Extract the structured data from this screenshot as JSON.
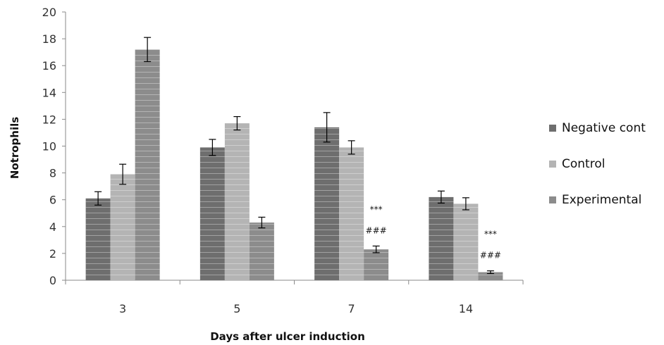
{
  "chart_data": {
    "type": "bar",
    "title": "",
    "xlabel": "Days after ulcer induction",
    "ylabel": "Notrophils",
    "categories": [
      "3",
      "5",
      "7",
      "14"
    ],
    "ylim": [
      0,
      20
    ],
    "yticks": [
      0,
      2,
      4,
      6,
      8,
      10,
      12,
      14,
      16,
      18,
      20
    ],
    "grid": false,
    "legend_position": "right",
    "series": [
      {
        "name": "Negative cont",
        "color": "#6e6e6e",
        "values": [
          6.1,
          9.9,
          11.4,
          6.2
        ],
        "errors": [
          0.5,
          0.6,
          1.1,
          0.45
        ]
      },
      {
        "name": "Control",
        "color": "#b4b4b4",
        "values": [
          7.9,
          11.7,
          9.9,
          5.7
        ],
        "errors": [
          0.75,
          0.5,
          0.5,
          0.45
        ]
      },
      {
        "name": "Experimental",
        "color": "#8c8c8c",
        "values": [
          17.2,
          4.3,
          2.3,
          0.6
        ],
        "errors": [
          0.9,
          0.4,
          0.25,
          0.1
        ]
      }
    ],
    "annotations": [
      {
        "category": "7",
        "series": "Experimental",
        "lines": [
          "***",
          "###"
        ]
      },
      {
        "category": "14",
        "series": "Experimental",
        "lines": [
          "***",
          "###"
        ]
      }
    ]
  }
}
